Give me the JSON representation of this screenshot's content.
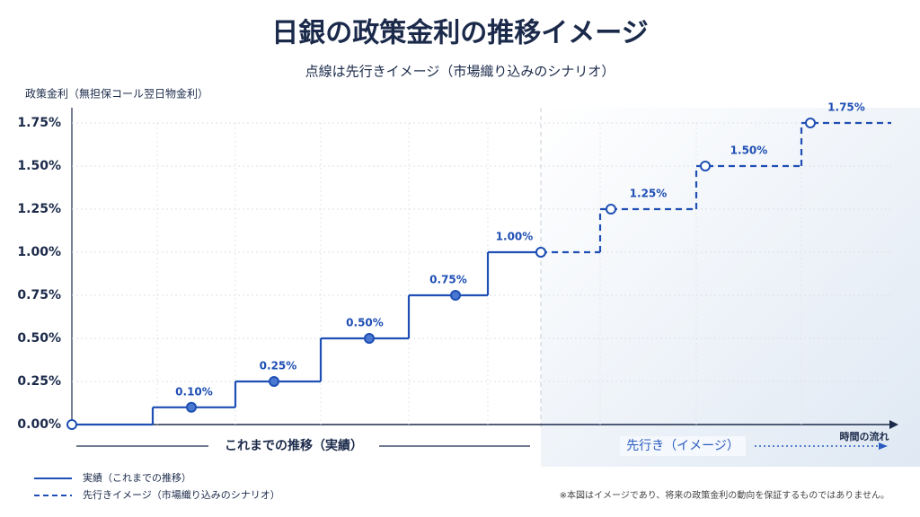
{
  "chart_data": {
    "type": "step",
    "title": "日銀の政策金利の推移イメージ",
    "subtitle": "点線は先行きイメージ（市場織り込みのシナリオ）",
    "y_label": "政策金利（無担保コール翌日物金利）",
    "categories": [
      null,
      null,
      null,
      null,
      null,
      null,
      null,
      null,
      null
    ],
    "series": [
      {
        "name": "実績（これまでの推移）",
        "color": "#1f4fb4",
        "style": "solid",
        "values": [
          0,
          0.1,
          0.25,
          0.5,
          0.75,
          1.0,
          null,
          null,
          null
        ],
        "value_labels": [
          null,
          "0.10%",
          "0.25%",
          "0.50%",
          "0.75%",
          "1.00%",
          null,
          null,
          null
        ]
      },
      {
        "name": "先行きイメージ（市場織り込みのシナリオ）",
        "color": "#1f4fb4",
        "style": "dashed",
        "values": [
          null,
          null,
          null,
          null,
          null,
          1.0,
          1.25,
          1.5,
          1.75
        ],
        "value_labels": [
          null,
          null,
          null,
          null,
          null,
          null,
          "1.25%",
          "1.50%",
          "1.75%"
        ]
      }
    ],
    "ylim": [
      0,
      1.75
    ],
    "yticks": [
      {
        "value": 0,
        "label": "0.00%"
      },
      {
        "value": 0.25,
        "label": "0.25%"
      },
      {
        "value": 0.5,
        "label": "0.50%"
      },
      {
        "value": 0.75,
        "label": "0.75%"
      },
      {
        "value": 1,
        "label": "1.00%"
      },
      {
        "value": 1.25,
        "label": "1.25%"
      },
      {
        "value": 1.5,
        "label": "1.50%"
      },
      {
        "value": 1.75,
        "label": "1.75%"
      }
    ],
    "grid": true,
    "annotations": {
      "past": "これまでの推移（実績）",
      "future": "先行き（イメージ）",
      "x_label": "時間の流れ"
    },
    "footnote": "※本図はイメージであり、将来の政策金利の動向を保証するものではありません。"
  }
}
